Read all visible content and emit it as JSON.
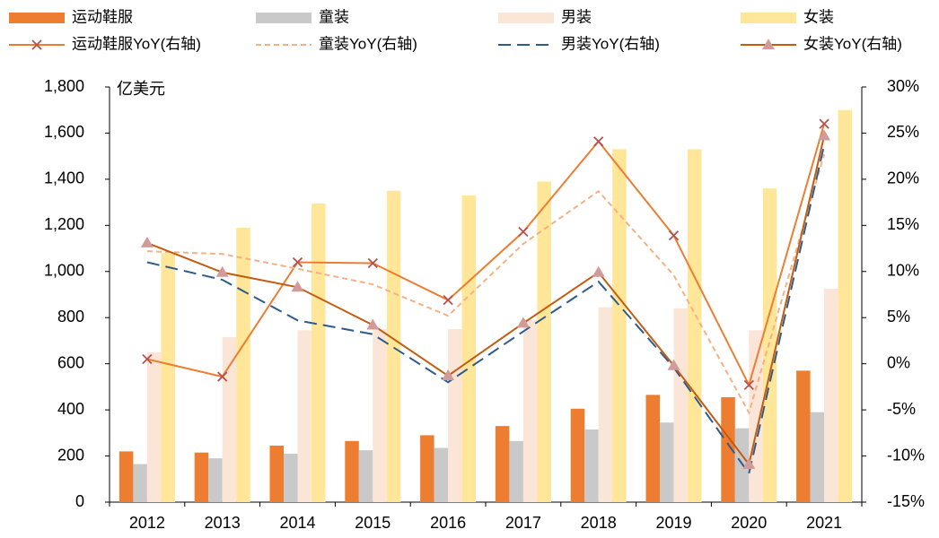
{
  "chart_data": {
    "type": "bar",
    "annotation": "亿美元",
    "categories": [
      "2012",
      "2013",
      "2014",
      "2015",
      "2016",
      "2017",
      "2018",
      "2019",
      "2020",
      "2021"
    ],
    "ylim": [
      0,
      1800
    ],
    "yticks": [
      0,
      200,
      400,
      600,
      800,
      {
        "value": 1000,
        "label": "1,000"
      },
      {
        "value": 1200,
        "label": "1,200"
      },
      {
        "value": 1400,
        "label": "1,400"
      },
      {
        "value": 1600,
        "label": "1,600"
      },
      {
        "value": 1800,
        "label": "1,800"
      }
    ],
    "y2lim": [
      -15,
      30
    ],
    "y2ticks": [
      {
        "value": -15,
        "label": "-15%"
      },
      {
        "value": -10,
        "label": "-10%"
      },
      {
        "value": -5,
        "label": "-5%"
      },
      {
        "value": 0,
        "label": "0%"
      },
      {
        "value": 5,
        "label": "5%"
      },
      {
        "value": 10,
        "label": "10%"
      },
      {
        "value": 15,
        "label": "15%"
      },
      {
        "value": 20,
        "label": "20%"
      },
      {
        "value": 25,
        "label": "25%"
      },
      {
        "value": 30,
        "label": "30%"
      }
    ],
    "grid": false,
    "series": [
      {
        "name": "运动鞋服",
        "type": "bar",
        "color": "#ED7D31",
        "values": [
          220,
          215,
          245,
          265,
          290,
          330,
          405,
          465,
          455,
          570
        ]
      },
      {
        "name": "童装",
        "type": "bar",
        "color": "#C9C9C9",
        "values": [
          165,
          190,
          210,
          225,
          235,
          265,
          315,
          345,
          320,
          390
        ]
      },
      {
        "name": "男装",
        "type": "bar",
        "color": "#FBE5D6",
        "values": [
          650,
          715,
          745,
          750,
          750,
          790,
          845,
          840,
          745,
          925
        ]
      },
      {
        "name": "女装",
        "type": "bar",
        "color": "#FFE699",
        "values": [
          1080,
          1190,
          1295,
          1350,
          1330,
          1390,
          1530,
          1530,
          1360,
          1700
        ]
      },
      {
        "name": "运动鞋服YoY(右轴)",
        "type": "line",
        "axis": "y2",
        "color": "#ED7D31",
        "marker": "x",
        "marker_color": "#B5524E",
        "linestyle": "solid",
        "values": [
          0.5,
          -1.4,
          11.0,
          10.9,
          6.9,
          14.3,
          24.1,
          13.9,
          -2.3,
          26.0
        ]
      },
      {
        "name": "童装YoY(右轴)",
        "type": "line",
        "axis": "y2",
        "color": "#F4B183",
        "linestyle": "dashed",
        "values": [
          12.2,
          11.9,
          10.3,
          8.6,
          5.2,
          13.0,
          18.7,
          9.6,
          -5.3,
          22.7
        ]
      },
      {
        "name": "男装YoY(右轴)",
        "type": "line",
        "axis": "y2",
        "color": "#2E5C8A",
        "linestyle": "longdash",
        "values": [
          11.0,
          9.1,
          4.7,
          3.2,
          -2.0,
          3.5,
          8.9,
          -0.4,
          -11.9,
          23.7
        ]
      },
      {
        "name": "女装YoY(右轴)",
        "type": "line",
        "axis": "y2",
        "color": "#C55A11",
        "marker": "triangle",
        "marker_color": "#D39A9A",
        "linestyle": "solid",
        "values": [
          13.1,
          9.9,
          8.3,
          4.2,
          -1.3,
          4.4,
          9.9,
          -0.2,
          -10.9,
          24.7
        ]
      }
    ]
  }
}
